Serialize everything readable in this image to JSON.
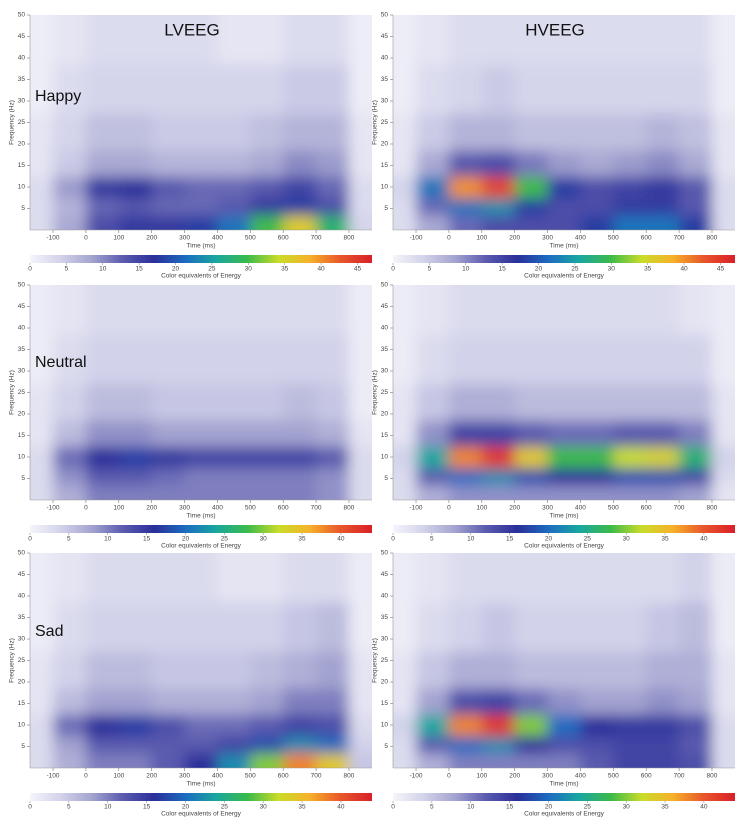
{
  "column_labels": [
    "LVEEG",
    "HVEEG"
  ],
  "row_labels": [
    "Happy",
    "Neutral",
    "Sad"
  ],
  "chart_data": [
    {
      "type": "contour",
      "xlabel": "Time (ms)",
      "ylabel": "Frequency (Hz)",
      "colorbar_label": "Color equivalents of Energy",
      "x": [
        -150,
        -50,
        50,
        150,
        250,
        350,
        450,
        550,
        650,
        750,
        850
      ],
      "y": [
        2,
        5,
        10,
        15,
        22,
        32,
        45
      ],
      "z": [
        [
          3,
          8,
          14,
          16,
          16,
          18,
          22,
          30,
          36,
          28,
          4
        ],
        [
          3,
          7,
          12,
          13,
          12,
          12,
          13,
          16,
          18,
          14,
          3
        ],
        [
          3,
          9,
          16,
          17,
          13,
          12,
          12,
          13,
          15,
          12,
          3
        ],
        [
          2,
          5,
          8,
          8,
          7,
          7,
          7,
          8,
          10,
          9,
          2
        ],
        [
          2,
          4,
          6,
          6,
          5,
          5,
          5,
          6,
          7,
          7,
          2
        ],
        [
          1,
          3,
          4,
          4,
          4,
          4,
          4,
          4,
          5,
          5,
          1
        ],
        [
          1,
          2,
          3,
          3,
          3,
          3,
          2,
          2,
          3,
          3,
          1
        ]
      ],
      "xlim": [
        -170,
        870
      ],
      "ylim": [
        0,
        50
      ],
      "xticks": [
        -100,
        0,
        100,
        200,
        300,
        400,
        500,
        600,
        700,
        800
      ],
      "yticks": [
        5,
        10,
        15,
        20,
        25,
        30,
        35,
        40,
        45,
        50
      ],
      "clim": [
        0,
        47
      ],
      "cticks": [
        0,
        5,
        10,
        15,
        20,
        25,
        30,
        35,
        40,
        45
      ],
      "colorscale": [
        "#f5f5fb",
        "#d2d2ea",
        "#a3a3d0",
        "#5a5aae",
        "#2a2f9a",
        "#1c6cc0",
        "#19a7a0",
        "#3cba4a",
        "#c9dc2a",
        "#f6b12a",
        "#e8562a",
        "#d8202a"
      ]
    },
    {
      "type": "contour",
      "xlabel": "Time (ms)",
      "ylabel": "Frequency (Hz)",
      "colorbar_label": "Color equivalents of Energy",
      "x": [
        -150,
        -50,
        50,
        150,
        250,
        350,
        450,
        550,
        650,
        750,
        850
      ],
      "y": [
        2,
        5,
        10,
        15,
        22,
        32,
        45
      ],
      "z": [
        [
          3,
          8,
          12,
          14,
          14,
          14,
          18,
          22,
          22,
          18,
          3
        ],
        [
          3,
          12,
          22,
          24,
          18,
          14,
          14,
          16,
          16,
          13,
          3
        ],
        [
          4,
          22,
          40,
          44,
          30,
          18,
          14,
          15,
          16,
          13,
          3
        ],
        [
          2,
          8,
          13,
          14,
          11,
          9,
          8,
          9,
          10,
          8,
          2
        ],
        [
          2,
          5,
          7,
          7,
          6,
          6,
          6,
          6,
          7,
          6,
          2
        ],
        [
          1,
          3,
          4,
          5,
          4,
          4,
          4,
          4,
          4,
          4,
          1
        ],
        [
          1,
          2,
          3,
          3,
          3,
          3,
          3,
          3,
          3,
          3,
          1
        ]
      ],
      "xlim": [
        -170,
        870
      ],
      "ylim": [
        0,
        50
      ],
      "xticks": [
        -100,
        0,
        100,
        200,
        300,
        400,
        500,
        600,
        700,
        800
      ],
      "yticks": [
        5,
        10,
        15,
        20,
        25,
        30,
        35,
        40,
        45,
        50
      ],
      "clim": [
        0,
        47
      ],
      "cticks": [
        0,
        5,
        10,
        15,
        20,
        25,
        30,
        35,
        40,
        45
      ],
      "colorscale": [
        "#f5f5fb",
        "#d2d2ea",
        "#a3a3d0",
        "#5a5aae",
        "#2a2f9a",
        "#1c6cc0",
        "#19a7a0",
        "#3cba4a",
        "#c9dc2a",
        "#f6b12a",
        "#e8562a",
        "#d8202a"
      ]
    },
    {
      "type": "contour",
      "xlabel": "Time (ms)",
      "ylabel": "Frequency (Hz)",
      "colorbar_label": "Color equivalents of Energy",
      "x": [
        -150,
        -50,
        50,
        150,
        250,
        350,
        450,
        550,
        650,
        750,
        850
      ],
      "y": [
        2,
        5,
        10,
        15,
        22,
        32,
        45
      ],
      "z": [
        [
          3,
          7,
          10,
          10,
          10,
          10,
          10,
          10,
          10,
          9,
          3
        ],
        [
          3,
          9,
          12,
          12,
          11,
          10,
          10,
          10,
          10,
          9,
          3
        ],
        [
          3,
          11,
          16,
          17,
          15,
          14,
          14,
          14,
          14,
          12,
          3
        ],
        [
          2,
          6,
          9,
          9,
          8,
          8,
          8,
          8,
          8,
          7,
          2
        ],
        [
          2,
          4,
          6,
          6,
          5,
          5,
          5,
          5,
          6,
          5,
          1
        ],
        [
          1,
          3,
          4,
          4,
          4,
          4,
          4,
          4,
          4,
          4,
          1
        ],
        [
          1,
          2,
          3,
          3,
          3,
          3,
          3,
          3,
          3,
          3,
          1
        ]
      ],
      "xlim": [
        -170,
        870
      ],
      "ylim": [
        0,
        50
      ],
      "xticks": [
        -100,
        0,
        100,
        200,
        300,
        400,
        500,
        600,
        700,
        800
      ],
      "yticks": [
        5,
        10,
        15,
        20,
        25,
        30,
        35,
        40,
        45,
        50
      ],
      "clim": [
        0,
        44
      ],
      "cticks": [
        0,
        5,
        10,
        15,
        20,
        25,
        30,
        35,
        40
      ],
      "colorscale": [
        "#f5f5fb",
        "#d2d2ea",
        "#a3a3d0",
        "#5a5aae",
        "#2a2f9a",
        "#1c6cc0",
        "#19a7a0",
        "#3cba4a",
        "#c9dc2a",
        "#f6b12a",
        "#e8562a",
        "#d8202a"
      ]
    },
    {
      "type": "contour",
      "xlabel": "Time (ms)",
      "ylabel": "Frequency (Hz)",
      "colorbar_label": "Color equivalents of Energy",
      "x": [
        -150,
        -50,
        50,
        150,
        250,
        350,
        450,
        550,
        650,
        750,
        850
      ],
      "y": [
        2,
        5,
        10,
        15,
        22,
        32,
        45
      ],
      "z": [
        [
          3,
          7,
          9,
          9,
          9,
          9,
          9,
          9,
          9,
          8,
          2
        ],
        [
          3,
          12,
          20,
          22,
          18,
          16,
          16,
          18,
          18,
          14,
          3
        ],
        [
          4,
          24,
          38,
          42,
          34,
          28,
          28,
          32,
          33,
          26,
          4
        ],
        [
          2,
          9,
          14,
          14,
          12,
          11,
          11,
          12,
          12,
          10,
          2
        ],
        [
          2,
          5,
          7,
          7,
          6,
          6,
          6,
          6,
          6,
          6,
          2
        ],
        [
          1,
          3,
          4,
          4,
          4,
          4,
          4,
          4,
          4,
          4,
          1
        ],
        [
          1,
          2,
          3,
          3,
          3,
          3,
          3,
          3,
          3,
          2,
          1
        ]
      ],
      "xlim": [
        -170,
        870
      ],
      "ylim": [
        0,
        50
      ],
      "xticks": [
        -100,
        0,
        100,
        200,
        300,
        400,
        500,
        600,
        700,
        800
      ],
      "yticks": [
        5,
        10,
        15,
        20,
        25,
        30,
        35,
        40,
        45,
        50
      ],
      "clim": [
        0,
        44
      ],
      "cticks": [
        0,
        5,
        10,
        15,
        20,
        25,
        30,
        35,
        40
      ],
      "colorscale": [
        "#f5f5fb",
        "#d2d2ea",
        "#a3a3d0",
        "#5a5aae",
        "#2a2f9a",
        "#1c6cc0",
        "#19a7a0",
        "#3cba4a",
        "#c9dc2a",
        "#f6b12a",
        "#e8562a",
        "#d8202a"
      ]
    },
    {
      "type": "contour",
      "xlabel": "Time (ms)",
      "ylabel": "Frequency (Hz)",
      "colorbar_label": "Color equivalents of Energy",
      "x": [
        -150,
        -50,
        50,
        150,
        250,
        350,
        450,
        550,
        650,
        750,
        850
      ],
      "y": [
        2,
        5,
        10,
        15,
        22,
        32,
        45
      ],
      "z": [
        [
          3,
          7,
          10,
          10,
          12,
          16,
          22,
          30,
          38,
          34,
          5
        ],
        [
          3,
          8,
          12,
          12,
          12,
          12,
          14,
          18,
          22,
          20,
          4
        ],
        [
          3,
          11,
          16,
          17,
          13,
          11,
          11,
          12,
          14,
          13,
          3
        ],
        [
          2,
          6,
          8,
          8,
          7,
          7,
          7,
          8,
          10,
          10,
          2
        ],
        [
          2,
          4,
          6,
          6,
          5,
          5,
          5,
          6,
          7,
          8,
          2
        ],
        [
          1,
          3,
          4,
          4,
          4,
          4,
          4,
          4,
          5,
          6,
          1
        ],
        [
          1,
          2,
          3,
          3,
          3,
          3,
          2,
          2,
          3,
          3,
          1
        ]
      ],
      "xlim": [
        -170,
        870
      ],
      "ylim": [
        0,
        50
      ],
      "xticks": [
        -100,
        0,
        100,
        200,
        300,
        400,
        500,
        600,
        700,
        800
      ],
      "yticks": [
        5,
        10,
        15,
        20,
        25,
        30,
        35,
        40,
        45,
        50
      ],
      "clim": [
        0,
        44
      ],
      "cticks": [
        0,
        5,
        10,
        15,
        20,
        25,
        30,
        35,
        40
      ],
      "colorscale": [
        "#f5f5fb",
        "#d2d2ea",
        "#a3a3d0",
        "#5a5aae",
        "#2a2f9a",
        "#1c6cc0",
        "#19a7a0",
        "#3cba4a",
        "#c9dc2a",
        "#f6b12a",
        "#e8562a",
        "#d8202a"
      ]
    },
    {
      "type": "contour",
      "xlabel": "Time (ms)",
      "ylabel": "Frequency (Hz)",
      "colorbar_label": "Color equivalents of Energy",
      "x": [
        -150,
        -50,
        50,
        150,
        250,
        350,
        450,
        550,
        650,
        750,
        850
      ],
      "y": [
        2,
        5,
        10,
        15,
        22,
        32,
        45
      ],
      "z": [
        [
          3,
          7,
          10,
          10,
          10,
          10,
          12,
          14,
          14,
          13,
          3
        ],
        [
          3,
          12,
          20,
          22,
          16,
          13,
          13,
          14,
          14,
          12,
          3
        ],
        [
          4,
          24,
          38,
          42,
          30,
          20,
          16,
          15,
          15,
          13,
          3
        ],
        [
          2,
          8,
          13,
          14,
          11,
          9,
          8,
          8,
          9,
          8,
          2
        ],
        [
          2,
          5,
          7,
          7,
          6,
          6,
          6,
          6,
          7,
          7,
          2
        ],
        [
          1,
          3,
          4,
          5,
          4,
          4,
          4,
          4,
          5,
          6,
          1
        ],
        [
          1,
          2,
          3,
          3,
          3,
          3,
          3,
          3,
          3,
          4,
          1
        ]
      ],
      "xlim": [
        -170,
        870
      ],
      "ylim": [
        0,
        50
      ],
      "xticks": [
        -100,
        0,
        100,
        200,
        300,
        400,
        500,
        600,
        700,
        800
      ],
      "yticks": [
        5,
        10,
        15,
        20,
        25,
        30,
        35,
        40,
        45,
        50
      ],
      "clim": [
        0,
        44
      ],
      "cticks": [
        0,
        5,
        10,
        15,
        20,
        25,
        30,
        35,
        40
      ],
      "colorscale": [
        "#f5f5fb",
        "#d2d2ea",
        "#a3a3d0",
        "#5a5aae",
        "#2a2f9a",
        "#1c6cc0",
        "#19a7a0",
        "#3cba4a",
        "#c9dc2a",
        "#f6b12a",
        "#e8562a",
        "#d8202a"
      ]
    }
  ]
}
